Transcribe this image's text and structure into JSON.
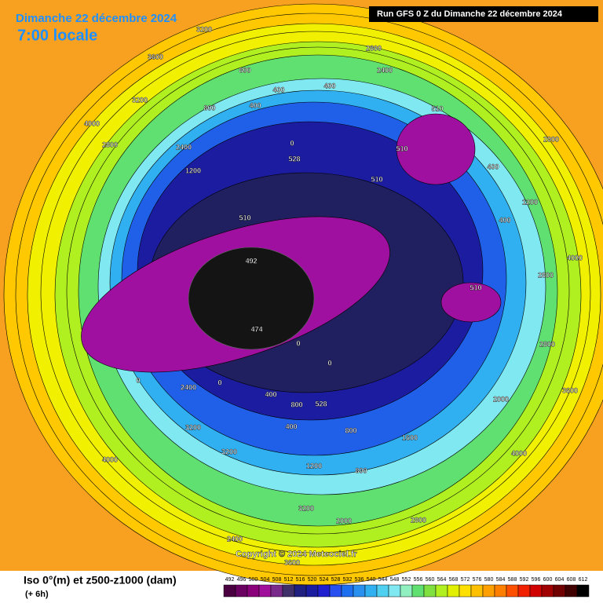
{
  "header": {
    "date": "Dimanche 22 décembre 2024",
    "time": "7:00 locale",
    "run": "Run GFS 0 Z du Dimanche 22 décembre 2024"
  },
  "footer": {
    "title": "Iso 0°(m) et z500-z1000 (dam)",
    "step": "(+ 6h)",
    "copyright": "Copyright © 2024 Meteociel.fr"
  },
  "scale": {
    "values": [
      492,
      496,
      500,
      504,
      508,
      512,
      516,
      520,
      524,
      528,
      532,
      536,
      540,
      544,
      548,
      552,
      556,
      560,
      564,
      568,
      572,
      576,
      580,
      584,
      588,
      592,
      596,
      600,
      604,
      608,
      612
    ],
    "colors": [
      "#4a0040",
      "#6a0060",
      "#8a007a",
      "#a0109a",
      "#7a2a8a",
      "#40306a",
      "#202080",
      "#1c1ca0",
      "#2020d0",
      "#2850f0",
      "#1e6ef0",
      "#2a90f0",
      "#30b0f0",
      "#50d0f0",
      "#80e8f0",
      "#90f0c0",
      "#60e070",
      "#80e040",
      "#b0f020",
      "#e0f000",
      "#ffe000",
      "#ffc000",
      "#ffa000",
      "#ff8000",
      "#ff5000",
      "#f02000",
      "#d00000",
      "#a00000",
      "#700000",
      "#400000",
      "#000000"
    ]
  },
  "map": {
    "labels": [
      "800",
      "400",
      "400",
      "800",
      "400",
      "0",
      "528",
      "510",
      "510",
      "510",
      "510",
      "492",
      "474",
      "510",
      "0",
      "0",
      "0",
      "0",
      "400",
      "800",
      "528",
      "400",
      "800",
      "1600",
      "2400",
      "3200",
      "4000",
      "3200",
      "2800",
      "2400",
      "3200",
      "3600",
      "3200",
      "4000",
      "2800",
      "2400",
      "1200",
      "2000",
      "4000",
      "2800",
      "2800",
      "3600",
      "2000",
      "4000",
      "3200",
      "2000",
      "2800",
      "2400",
      "3600",
      "400",
      "400",
      "1200",
      "800",
      "1200"
    ]
  }
}
